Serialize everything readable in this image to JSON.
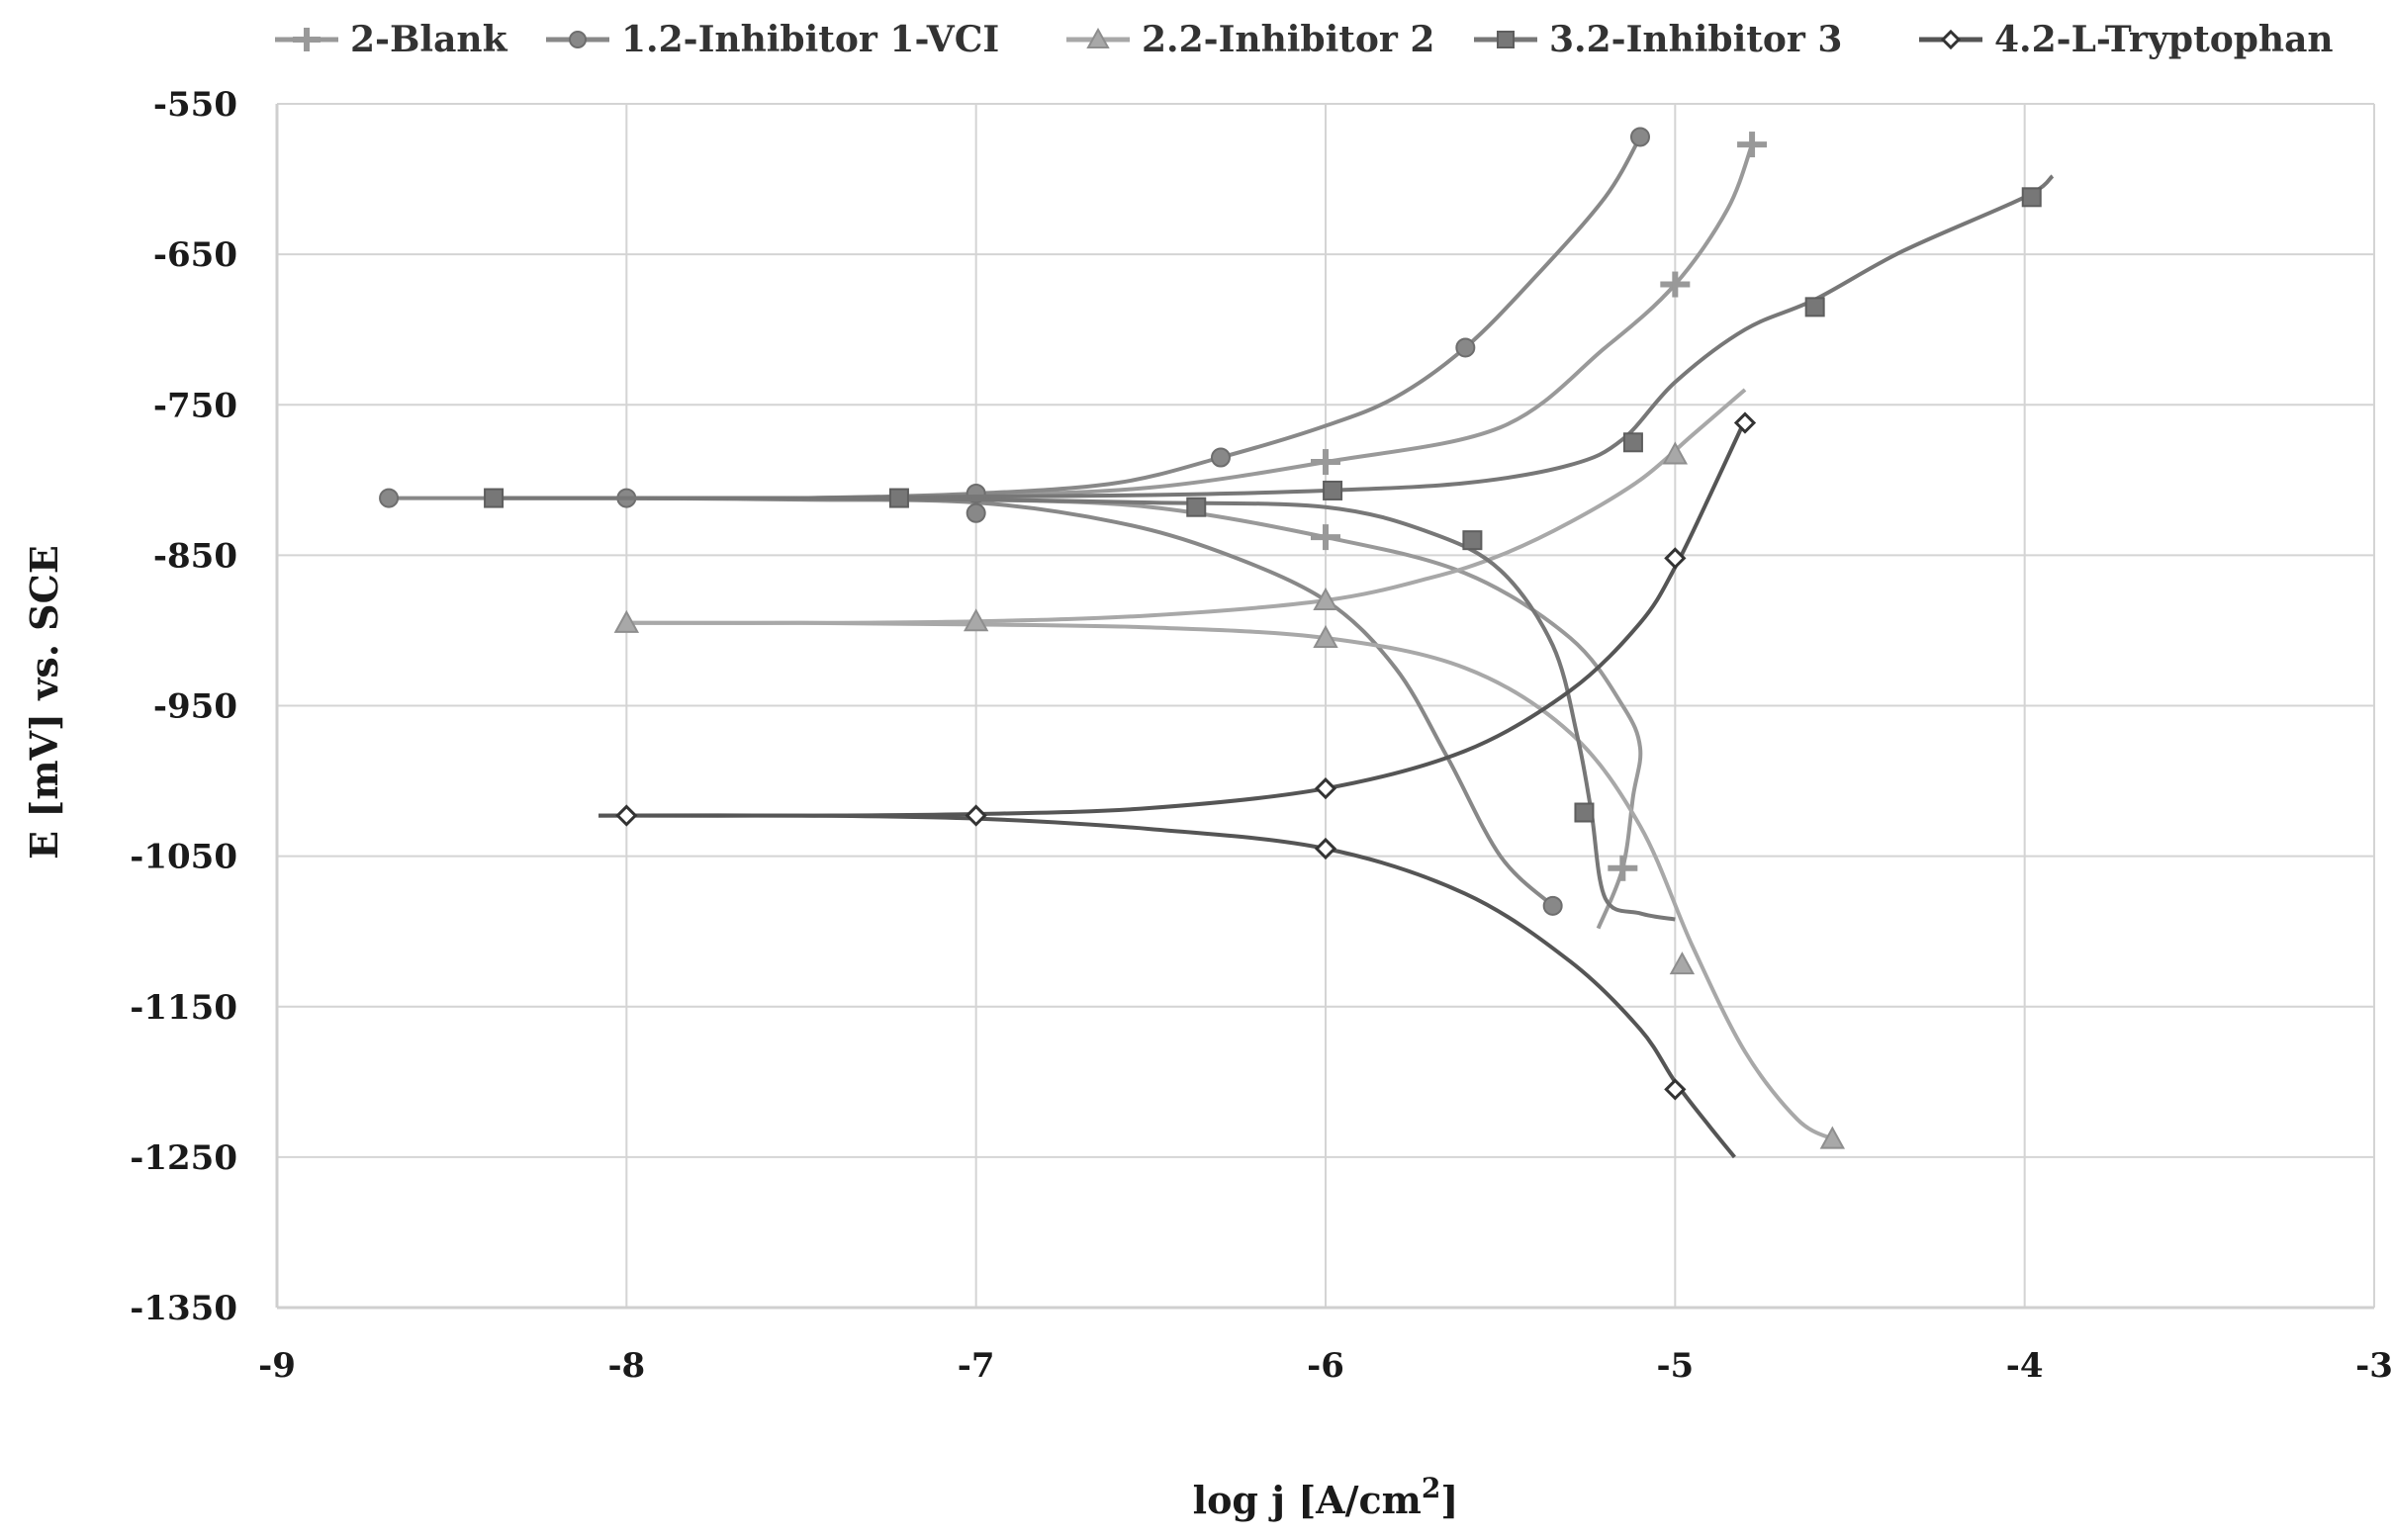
{
  "chart_data": {
    "type": "line",
    "title": "",
    "xlabel": "log j [A/cm",
    "xlabel_sup": "2",
    "xlabel_end": "]",
    "ylabel": "E [mV] vs. SCE",
    "xlim": [
      -9,
      -3
    ],
    "ylim": [
      -1350,
      -550
    ],
    "x_ticks": [
      -9,
      -8,
      -7,
      -6,
      -5,
      -4,
      -3
    ],
    "x_tick_labels": [
      "-9",
      "-8",
      "-7",
      "-6",
      "-5",
      "-4",
      "-3"
    ],
    "y_ticks": [
      -550,
      -650,
      -750,
      -850,
      -950,
      -1050,
      -1150,
      -1250,
      -1350
    ],
    "y_tick_labels": [
      "-550",
      "-650",
      "-750",
      "-850",
      "-950",
      "-1050",
      "-1150",
      "-1250",
      "-1350"
    ],
    "grid": true,
    "legend_position": "top",
    "series": [
      {
        "name": "2-Blank",
        "color": "#999999",
        "marker": "plus",
        "branches": [
          [
            [
              -8.0,
              -812
            ],
            [
              -7.5,
              -812
            ],
            [
              -7.0,
              -810
            ],
            [
              -6.5,
              -805
            ],
            [
              -6.0,
              -788
            ],
            [
              -5.5,
              -765
            ],
            [
              -5.2,
              -712
            ],
            [
              -5.0,
              -670
            ],
            [
              -4.85,
              -620
            ],
            [
              -4.78,
              -577
            ]
          ],
          [
            [
              -8.0,
              -812
            ],
            [
              -7.5,
              -812
            ],
            [
              -7.0,
              -813
            ],
            [
              -6.5,
              -818
            ],
            [
              -6.0,
              -838
            ],
            [
              -5.6,
              -862
            ],
            [
              -5.3,
              -905
            ],
            [
              -5.15,
              -950
            ],
            [
              -5.1,
              -978
            ],
            [
              -5.12,
              -1010
            ],
            [
              -5.15,
              -1058
            ],
            [
              -5.22,
              -1098
            ]
          ]
        ],
        "markers": [
          [
            -7.0,
            -812
          ],
          [
            -6.0,
            -788
          ],
          [
            -5.0,
            -670
          ],
          [
            -4.78,
            -577
          ],
          [
            -6.0,
            -838
          ],
          [
            -5.15,
            -1058
          ]
        ]
      },
      {
        "name": "1.2-Inhibitor 1-VCI",
        "color": "#888888",
        "marker": "circle",
        "branches": [
          [
            [
              -8.68,
              -812
            ],
            [
              -8.0,
              -812
            ],
            [
              -7.5,
              -812
            ],
            [
              -7.0,
              -809
            ],
            [
              -6.6,
              -802
            ],
            [
              -6.3,
              -785
            ],
            [
              -6.0,
              -764
            ],
            [
              -5.8,
              -745
            ],
            [
              -5.6,
              -712
            ],
            [
              -5.4,
              -665
            ],
            [
              -5.2,
              -612
            ],
            [
              -5.1,
              -572
            ]
          ],
          [
            [
              -8.0,
              -812
            ],
            [
              -7.5,
              -813
            ],
            [
              -7.0,
              -815
            ],
            [
              -6.6,
              -828
            ],
            [
              -6.3,
              -848
            ],
            [
              -6.0,
              -880
            ],
            [
              -5.8,
              -925
            ],
            [
              -5.65,
              -985
            ],
            [
              -5.5,
              -1050
            ],
            [
              -5.35,
              -1083
            ]
          ]
        ],
        "markers": [
          [
            -8.68,
            -812
          ],
          [
            -8.0,
            -812
          ],
          [
            -7.0,
            -809
          ],
          [
            -6.3,
            -785
          ],
          [
            -5.6,
            -712
          ],
          [
            -5.1,
            -572
          ],
          [
            -7.0,
            -822
          ],
          [
            -5.35,
            -1083
          ]
        ]
      },
      {
        "name": "2.2-Inhibitor 2",
        "color": "#a8a8a8",
        "marker": "triangle",
        "branches": [
          [
            [
              -8.0,
              -895
            ],
            [
              -7.5,
              -895
            ],
            [
              -7.0,
              -894
            ],
            [
              -6.5,
              -890
            ],
            [
              -6.0,
              -880
            ],
            [
              -5.7,
              -865
            ],
            [
              -5.5,
              -850
            ],
            [
              -5.3,
              -828
            ],
            [
              -5.1,
              -800
            ],
            [
              -4.95,
              -770
            ],
            [
              -4.8,
              -740
            ]
          ],
          [
            [
              -8.0,
              -895
            ],
            [
              -7.5,
              -895
            ],
            [
              -7.0,
              -896
            ],
            [
              -6.5,
              -898
            ],
            [
              -6.0,
              -905
            ],
            [
              -5.6,
              -925
            ],
            [
              -5.3,
              -968
            ],
            [
              -5.1,
              -1030
            ],
            [
              -4.95,
              -1110
            ],
            [
              -4.8,
              -1180
            ],
            [
              -4.65,
              -1225
            ],
            [
              -4.55,
              -1238
            ]
          ]
        ],
        "markers": [
          [
            -8.0,
            -895
          ],
          [
            -7.0,
            -894
          ],
          [
            -6.0,
            -880
          ],
          [
            -5.0,
            -783
          ],
          [
            -6.0,
            -905
          ],
          [
            -4.98,
            -1122
          ],
          [
            -4.55,
            -1238
          ]
        ]
      },
      {
        "name": "3.2-Inhibitor 3",
        "color": "#777777",
        "marker": "square",
        "branches": [
          [
            [
              -8.38,
              -812
            ],
            [
              -8.0,
              -812
            ],
            [
              -7.5,
              -812
            ],
            [
              -7.0,
              -811
            ],
            [
              -6.5,
              -810
            ],
            [
              -6.0,
              -807
            ],
            [
              -5.6,
              -802
            ],
            [
              -5.3,
              -790
            ],
            [
              -5.15,
              -773
            ],
            [
              -5.0,
              -735
            ],
            [
              -4.8,
              -700
            ],
            [
              -4.6,
              -680
            ],
            [
              -4.35,
              -648
            ],
            [
              -4.0,
              -612
            ],
            [
              -3.92,
              -598
            ]
          ],
          [
            [
              -8.38,
              -812
            ],
            [
              -8.0,
              -812
            ],
            [
              -7.5,
              -812
            ],
            [
              -7.0,
              -813
            ],
            [
              -6.5,
              -815
            ],
            [
              -6.0,
              -818
            ],
            [
              -5.7,
              -835
            ],
            [
              -5.5,
              -860
            ],
            [
              -5.35,
              -910
            ],
            [
              -5.28,
              -970
            ],
            [
              -5.24,
              -1020
            ],
            [
              -5.2,
              -1078
            ],
            [
              -5.1,
              -1088
            ],
            [
              -5.0,
              -1092
            ]
          ]
        ],
        "markers": [
          [
            -8.38,
            -812
          ],
          [
            -7.22,
            -812
          ],
          [
            -6.37,
            -818
          ],
          [
            -5.98,
            -807
          ],
          [
            -5.58,
            -840
          ],
          [
            -5.12,
            -775
          ],
          [
            -4.6,
            -685
          ],
          [
            -3.98,
            -612
          ],
          [
            -5.26,
            -1021
          ]
        ]
      },
      {
        "name": "4.2-L-Tryptophan",
        "color": "#555555",
        "marker": "diamond",
        "branches": [
          [
            [
              -8.08,
              -1023
            ],
            [
              -7.5,
              -1023
            ],
            [
              -7.0,
              -1022
            ],
            [
              -6.5,
              -1018
            ],
            [
              -6.0,
              -1005
            ],
            [
              -5.6,
              -980
            ],
            [
              -5.3,
              -940
            ],
            [
              -5.1,
              -895
            ],
            [
              -5.0,
              -858
            ],
            [
              -4.9,
              -810
            ],
            [
              -4.8,
              -760
            ]
          ],
          [
            [
              -8.08,
              -1023
            ],
            [
              -7.5,
              -1023
            ],
            [
              -7.0,
              -1025
            ],
            [
              -6.5,
              -1032
            ],
            [
              -6.0,
              -1045
            ],
            [
              -5.6,
              -1075
            ],
            [
              -5.3,
              -1120
            ],
            [
              -5.1,
              -1165
            ],
            [
              -5.0,
              -1200
            ],
            [
              -4.9,
              -1230
            ],
            [
              -4.83,
              -1250
            ]
          ]
        ],
        "markers": [
          [
            -8.0,
            -1023
          ],
          [
            -7.0,
            -1023
          ],
          [
            -6.0,
            -1005
          ],
          [
            -5.0,
            -852
          ],
          [
            -4.8,
            -762
          ],
          [
            -6.0,
            -1045
          ],
          [
            -5.0,
            -1205
          ]
        ]
      }
    ]
  }
}
